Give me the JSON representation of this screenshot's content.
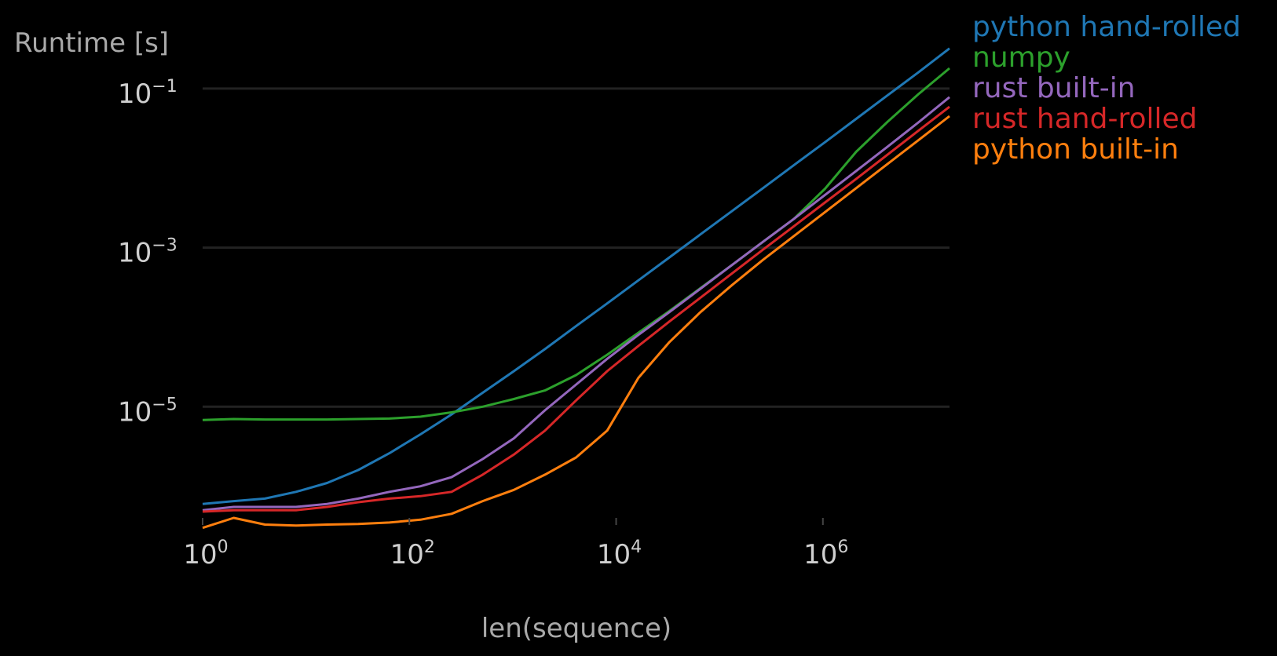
{
  "chart_data": {
    "type": "line",
    "xscale": "log",
    "yscale": "log",
    "xlabel": "len(sequence)",
    "ylabel": "Runtime [s]",
    "xlim": [
      1,
      16777216
    ],
    "ylim": [
      4e-07,
      0.6
    ],
    "grid": "horizontal",
    "legend": "right",
    "xticks": [
      {
        "value": 1,
        "base": "10",
        "exp": "0"
      },
      {
        "value": 100,
        "base": "10",
        "exp": "2"
      },
      {
        "value": 10000,
        "base": "10",
        "exp": "4"
      },
      {
        "value": 1000000,
        "base": "10",
        "exp": "6"
      }
    ],
    "yticks": [
      {
        "value": 1e-05,
        "base": "10",
        "exp": "−5"
      },
      {
        "value": 0.001,
        "base": "10",
        "exp": "−3"
      },
      {
        "value": 0.1,
        "base": "10",
        "exp": "−1"
      }
    ],
    "x": [
      1,
      2,
      4,
      8,
      16,
      32,
      64,
      128,
      256,
      512,
      1024,
      2048,
      4096,
      8192,
      16384,
      32768,
      65536,
      131072,
      262144,
      524288,
      1048576,
      2097152,
      4194304,
      8388608,
      16777216
    ],
    "series": [
      {
        "name": "python hand-rolled",
        "color": "#1f77b4",
        "values": [
          6e-07,
          6.5e-07,
          7e-07,
          8.5e-07,
          1.1e-06,
          1.6e-06,
          2.6e-06,
          4.5e-06,
          8e-06,
          1.5e-05,
          2.8e-05,
          5.3e-05,
          0.000103,
          0.000199,
          0.000388,
          0.000755,
          0.00147,
          0.00286,
          0.00558,
          0.0109,
          0.0212,
          0.0416,
          0.0818,
          0.16,
          0.32
        ]
      },
      {
        "name": "numpy",
        "color": "#2ca02c",
        "values": [
          6.8e-06,
          7e-06,
          6.9e-06,
          6.9e-06,
          6.9e-06,
          7e-06,
          7.1e-06,
          7.5e-06,
          8.5e-06,
          1e-05,
          1.25e-05,
          1.6e-05,
          2.5e-05,
          4.5e-05,
          8.5e-05,
          0.00016,
          0.00031,
          0.0006,
          0.00118,
          0.0023,
          0.0055,
          0.016,
          0.038,
          0.085,
          0.18
        ]
      },
      {
        "name": "rust built-in",
        "color": "#9467bd",
        "values": [
          5e-07,
          5.5e-07,
          5.5e-07,
          5.5e-07,
          6e-07,
          7e-07,
          8.5e-07,
          1e-06,
          1.3e-06,
          2.2e-06,
          4e-06,
          9e-06,
          1.9e-05,
          4e-05,
          8e-05,
          0.000155,
          0.000305,
          0.0006,
          0.00118,
          0.0023,
          0.0046,
          0.0092,
          0.0185,
          0.0375,
          0.078
        ]
      },
      {
        "name": "rust hand-rolled",
        "color": "#d62728",
        "values": [
          4.8e-07,
          5e-07,
          5e-07,
          5e-07,
          5.5e-07,
          6.3e-07,
          7e-07,
          7.5e-07,
          8.5e-07,
          1.4e-06,
          2.5e-06,
          5e-06,
          1.2e-05,
          2.8e-05,
          5.8e-05,
          0.000118,
          0.000235,
          0.00047,
          0.00094,
          0.00186,
          0.0037,
          0.0073,
          0.0147,
          0.0295,
          0.059
        ]
      },
      {
        "name": "python built-in",
        "color": "#ff7f0e",
        "values": [
          3e-07,
          4e-07,
          3.3e-07,
          3.2e-07,
          3.3e-07,
          3.35e-07,
          3.5e-07,
          3.8e-07,
          4.5e-07,
          6.5e-07,
          9e-07,
          1.4e-06,
          2.3e-06,
          5e-06,
          2.3e-05,
          6.5e-05,
          0.000155,
          0.000335,
          0.0007,
          0.0014,
          0.0028,
          0.0056,
          0.0112,
          0.0224,
          0.045
        ]
      }
    ]
  }
}
